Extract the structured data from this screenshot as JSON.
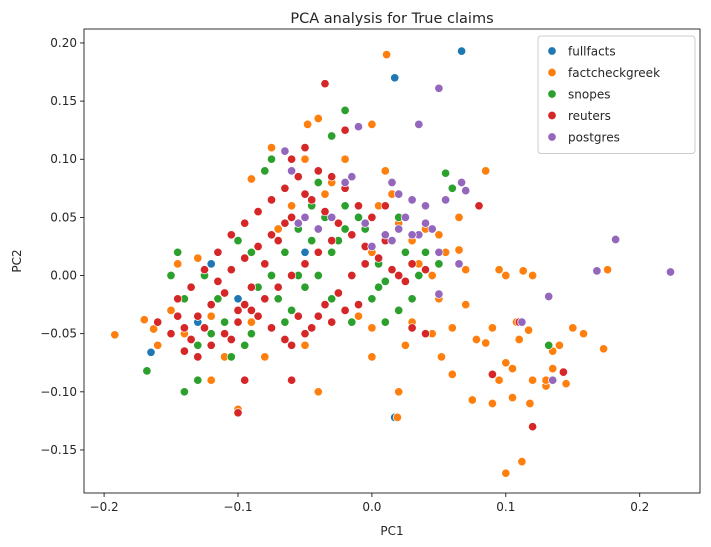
{
  "chart_data": {
    "type": "scatter",
    "title": "PCA analysis for True claims",
    "xlabel": "PC1",
    "ylabel": "PC2",
    "xlim": [
      -0.215,
      0.245
    ],
    "ylim": [
      -0.187,
      0.212
    ],
    "x_ticks": [
      -0.2,
      -0.1,
      0.0,
      0.1,
      0.2
    ],
    "x_tick_labels": [
      "−0.2",
      "−0.1",
      "0.0",
      "0.1",
      "0.2"
    ],
    "y_ticks": [
      -0.15,
      -0.1,
      -0.05,
      0.0,
      0.05,
      0.1,
      0.15,
      0.2
    ],
    "y_tick_labels": [
      "−0.15",
      "−0.10",
      "−0.05",
      "0.00",
      "0.05",
      "0.10",
      "0.15",
      "0.20"
    ],
    "grid": false,
    "legend_position": "top-right",
    "series": [
      {
        "name": "fullfacts",
        "color": "#1f77b4",
        "points": [
          [
            0.067,
            0.193
          ],
          [
            0.017,
            0.17
          ],
          [
            -0.165,
            -0.066
          ],
          [
            -0.12,
            0.01
          ],
          [
            -0.1,
            -0.02
          ],
          [
            -0.05,
            0.02
          ],
          [
            0.017,
            -0.122
          ],
          [
            -0.13,
            -0.04
          ]
        ]
      },
      {
        "name": "factcheckgreek",
        "color": "#ff7f0e",
        "points": [
          [
            0.011,
            0.19
          ],
          [
            -0.048,
            0.13
          ],
          [
            -0.04,
            0.135
          ],
          [
            0.0,
            0.13
          ],
          [
            -0.075,
            0.11
          ],
          [
            -0.05,
            0.1
          ],
          [
            -0.09,
            0.083
          ],
          [
            0.085,
            0.09
          ],
          [
            -0.192,
            -0.051
          ],
          [
            -0.17,
            -0.038
          ],
          [
            -0.163,
            -0.046
          ],
          [
            -0.16,
            -0.06
          ],
          [
            -0.12,
            -0.09
          ],
          [
            -0.1,
            -0.115
          ],
          [
            -0.06,
            -0.09
          ],
          [
            -0.04,
            -0.1
          ],
          [
            0.0,
            -0.07
          ],
          [
            0.02,
            -0.1
          ],
          [
            0.019,
            -0.122
          ],
          [
            0.06,
            -0.085
          ],
          [
            0.1,
            -0.17
          ],
          [
            0.112,
            -0.16
          ],
          [
            0.09,
            -0.11
          ],
          [
            0.1,
            -0.075
          ],
          [
            0.11,
            -0.055
          ],
          [
            0.12,
            -0.09
          ],
          [
            0.13,
            -0.095
          ],
          [
            0.135,
            -0.08
          ],
          [
            0.15,
            -0.045
          ],
          [
            0.158,
            -0.05
          ],
          [
            0.173,
            -0.063
          ],
          [
            0.176,
            0.005
          ],
          [
            0.113,
            0.004
          ],
          [
            0.095,
            0.005
          ],
          [
            0.07,
            0.005
          ],
          [
            0.055,
            0.02
          ],
          [
            0.065,
            0.05
          ],
          [
            0.05,
            0.035
          ],
          [
            0.03,
            0.03
          ],
          [
            0.045,
            -0.05
          ],
          [
            0.052,
            -0.07
          ],
          [
            0.06,
            -0.045
          ],
          [
            0.078,
            -0.055
          ],
          [
            0.085,
            -0.058
          ],
          [
            0.105,
            -0.08
          ],
          [
            0.13,
            -0.09
          ],
          [
            0.095,
            -0.09
          ],
          [
            0.118,
            -0.11
          ],
          [
            0.145,
            -0.093
          ],
          [
            0.14,
            -0.06
          ],
          [
            0.105,
            -0.105
          ],
          [
            0.075,
            -0.107
          ],
          [
            0.09,
            -0.045
          ],
          [
            0.117,
            -0.047
          ],
          [
            0.108,
            -0.04
          ],
          [
            0.12,
            0.0
          ],
          [
            0.135,
            -0.065
          ],
          [
            -0.02,
            0.1
          ],
          [
            -0.03,
            0.08
          ],
          [
            0.01,
            0.09
          ],
          [
            0.04,
            0.06
          ],
          [
            0.02,
            0.045
          ],
          [
            0.03,
            -0.04
          ],
          [
            0.025,
            -0.06
          ],
          [
            0.0,
            -0.045
          ],
          [
            -0.01,
            -0.035
          ],
          [
            -0.05,
            -0.06
          ],
          [
            -0.08,
            -0.07
          ],
          [
            -0.11,
            -0.07
          ],
          [
            -0.14,
            -0.05
          ],
          [
            -0.15,
            -0.03
          ],
          [
            -0.145,
            0.01
          ],
          [
            -0.13,
            0.015
          ],
          [
            -0.07,
            0.04
          ],
          [
            -0.06,
            0.06
          ],
          [
            -0.035,
            0.07
          ],
          [
            0.005,
            0.06
          ],
          [
            0.015,
            0.07
          ],
          [
            -0.09,
            -0.04
          ],
          [
            -0.12,
            -0.035
          ],
          [
            0.045,
            0.0
          ],
          [
            0.035,
            0.01
          ],
          [
            0.05,
            -0.02
          ],
          [
            0.04,
            0.04
          ],
          [
            0.065,
            0.022
          ],
          [
            0.1,
            0.0
          ],
          [
            0.07,
            -0.025
          ],
          [
            0.0,
            0.02
          ]
        ]
      },
      {
        "name": "snopes",
        "color": "#2ca02c",
        "points": [
          [
            -0.02,
            0.142
          ],
          [
            -0.03,
            0.12
          ],
          [
            -0.075,
            0.1
          ],
          [
            -0.08,
            0.09
          ],
          [
            -0.04,
            0.08
          ],
          [
            0.055,
            0.088
          ],
          [
            0.06,
            0.075
          ],
          [
            -0.168,
            -0.082
          ],
          [
            -0.14,
            -0.1
          ],
          [
            -0.13,
            -0.09
          ],
          [
            -0.145,
            0.02
          ],
          [
            -0.1,
            0.03
          ],
          [
            0.01,
            -0.04
          ],
          [
            0.025,
            0.02
          ],
          [
            0.03,
            -0.02
          ],
          [
            0.0,
            -0.02
          ],
          [
            -0.01,
            0.05
          ],
          [
            -0.02,
            0.04
          ],
          [
            -0.03,
            0.02
          ],
          [
            -0.04,
            0.0
          ],
          [
            -0.05,
            -0.01
          ],
          [
            -0.06,
            -0.03
          ],
          [
            -0.07,
            -0.02
          ],
          [
            -0.08,
            0.01
          ],
          [
            -0.09,
            0.02
          ],
          [
            -0.1,
            -0.03
          ],
          [
            -0.11,
            -0.04
          ],
          [
            -0.12,
            -0.05
          ],
          [
            -0.13,
            -0.06
          ],
          [
            0.05,
            0.01
          ],
          [
            0.04,
            0.02
          ],
          [
            0.02,
            -0.03
          ],
          [
            0.005,
            -0.01
          ],
          [
            -0.015,
            -0.04
          ],
          [
            -0.025,
            0.03
          ],
          [
            -0.035,
            0.05
          ],
          [
            -0.045,
            0.06
          ],
          [
            -0.055,
            0.04
          ],
          [
            -0.065,
            0.02
          ],
          [
            -0.075,
            0.0
          ],
          [
            -0.085,
            -0.01
          ],
          [
            -0.095,
            -0.06
          ],
          [
            -0.105,
            -0.07
          ],
          [
            -0.115,
            -0.02
          ],
          [
            -0.125,
            0.0
          ],
          [
            0.015,
            0.03
          ],
          [
            0.035,
            0.0
          ],
          [
            0.132,
            -0.06
          ],
          [
            0.02,
            0.05
          ],
          [
            -0.005,
            0.04
          ],
          [
            -0.02,
            0.06
          ],
          [
            -0.045,
            0.03
          ],
          [
            -0.055,
            0.0
          ],
          [
            -0.065,
            -0.04
          ],
          [
            -0.09,
            -0.05
          ],
          [
            -0.14,
            -0.02
          ],
          [
            -0.15,
            0.0
          ],
          [
            0.005,
            0.01
          ],
          [
            0.01,
            -0.005
          ],
          [
            -0.03,
            -0.02
          ]
        ]
      },
      {
        "name": "reuters",
        "color": "#d62728",
        "points": [
          [
            -0.035,
            0.165
          ],
          [
            -0.02,
            0.125
          ],
          [
            -0.05,
            0.11
          ],
          [
            -0.06,
            0.1
          ],
          [
            0.08,
            0.06
          ],
          [
            -0.1,
            -0.118
          ],
          [
            -0.095,
            -0.09
          ],
          [
            -0.06,
            -0.09
          ],
          [
            0.09,
            -0.085
          ],
          [
            0.12,
            -0.13
          ],
          [
            0.143,
            -0.083
          ],
          [
            0.11,
            -0.04
          ],
          [
            0.04,
            -0.05
          ],
          [
            0.03,
            -0.045
          ],
          [
            0.02,
            0.0
          ],
          [
            0.01,
            0.03
          ],
          [
            -0.01,
            0.06
          ],
          [
            -0.02,
            0.075
          ],
          [
            -0.03,
            0.085
          ],
          [
            -0.04,
            0.09
          ],
          [
            -0.05,
            0.07
          ],
          [
            -0.06,
            0.05
          ],
          [
            -0.07,
            0.03
          ],
          [
            -0.08,
            0.01
          ],
          [
            -0.09,
            -0.01
          ],
          [
            -0.1,
            -0.03
          ],
          [
            -0.11,
            -0.05
          ],
          [
            -0.12,
            -0.06
          ],
          [
            -0.13,
            -0.07
          ],
          [
            -0.14,
            -0.065
          ],
          [
            -0.15,
            -0.05
          ],
          [
            -0.16,
            -0.04
          ],
          [
            -0.145,
            -0.02
          ],
          [
            -0.135,
            -0.01
          ],
          [
            -0.125,
            0.005
          ],
          [
            -0.115,
            0.02
          ],
          [
            -0.105,
            0.035
          ],
          [
            -0.095,
            0.045
          ],
          [
            -0.085,
            0.055
          ],
          [
            -0.075,
            0.065
          ],
          [
            -0.065,
            0.075
          ],
          [
            -0.055,
            0.085
          ],
          [
            -0.045,
            0.065
          ],
          [
            -0.035,
            0.055
          ],
          [
            -0.025,
            0.045
          ],
          [
            -0.015,
            0.035
          ],
          [
            -0.005,
            0.025
          ],
          [
            0.005,
            0.015
          ],
          [
            0.015,
            0.005
          ],
          [
            0.025,
            -0.005
          ],
          [
            -0.03,
            0.03
          ],
          [
            -0.04,
            0.02
          ],
          [
            -0.05,
            0.01
          ],
          [
            -0.06,
            0.0
          ],
          [
            -0.07,
            -0.01
          ],
          [
            -0.08,
            -0.02
          ],
          [
            -0.09,
            -0.03
          ],
          [
            -0.1,
            -0.04
          ],
          [
            -0.11,
            -0.015
          ],
          [
            -0.12,
            -0.025
          ],
          [
            -0.13,
            -0.035
          ],
          [
            -0.14,
            -0.045
          ],
          [
            -0.055,
            -0.035
          ],
          [
            -0.045,
            -0.045
          ],
          [
            -0.035,
            -0.025
          ],
          [
            -0.025,
            -0.015
          ],
          [
            -0.015,
            0.0
          ],
          [
            -0.005,
            0.01
          ],
          [
            0.0,
            0.05
          ],
          [
            0.01,
            0.06
          ],
          [
            -0.065,
            0.045
          ],
          [
            -0.075,
            0.035
          ],
          [
            -0.085,
            0.025
          ],
          [
            -0.095,
            0.015
          ],
          [
            -0.105,
            0.005
          ],
          [
            -0.115,
            -0.005
          ],
          [
            -0.065,
            -0.055
          ],
          [
            -0.075,
            -0.045
          ],
          [
            -0.085,
            -0.035
          ],
          [
            -0.095,
            -0.025
          ],
          [
            -0.105,
            -0.055
          ],
          [
            -0.125,
            -0.045
          ],
          [
            -0.135,
            -0.055
          ],
          [
            -0.145,
            -0.035
          ],
          [
            0.03,
            0.01
          ],
          [
            0.04,
            0.005
          ],
          [
            -0.01,
            -0.025
          ],
          [
            -0.02,
            -0.03
          ],
          [
            -0.03,
            -0.04
          ],
          [
            -0.04,
            -0.035
          ],
          [
            -0.05,
            -0.05
          ],
          [
            -0.06,
            -0.06
          ]
        ]
      },
      {
        "name": "postgres",
        "color": "#9467bd",
        "points": [
          [
            0.05,
            0.161
          ],
          [
            0.035,
            0.13
          ],
          [
            -0.01,
            0.128
          ],
          [
            0.07,
            0.073
          ],
          [
            0.067,
            0.08
          ],
          [
            0.055,
            0.065
          ],
          [
            0.04,
            0.06
          ],
          [
            0.03,
            0.065
          ],
          [
            0.02,
            0.07
          ],
          [
            0.015,
            0.08
          ],
          [
            0.025,
            0.05
          ],
          [
            0.035,
            0.035
          ],
          [
            0.04,
            0.045
          ],
          [
            0.045,
            0.04
          ],
          [
            0.05,
            0.02
          ],
          [
            0.05,
            -0.016
          ],
          [
            0.065,
            0.01
          ],
          [
            0.168,
            0.004
          ],
          [
            0.182,
            0.031
          ],
          [
            0.223,
            0.003
          ],
          [
            0.132,
            -0.018
          ],
          [
            0.112,
            -0.04
          ],
          [
            0.135,
            -0.09
          ],
          [
            -0.065,
            0.107
          ],
          [
            -0.06,
            0.09
          ],
          [
            -0.05,
            0.05
          ],
          [
            -0.04,
            0.04
          ],
          [
            -0.03,
            0.05
          ],
          [
            -0.02,
            0.08
          ],
          [
            -0.015,
            0.085
          ],
          [
            0.01,
            0.035
          ],
          [
            0.015,
            0.03
          ],
          [
            0.02,
            0.04
          ],
          [
            0.03,
            0.035
          ],
          [
            0.0,
            0.025
          ],
          [
            -0.005,
            0.045
          ],
          [
            -0.055,
            0.045
          ]
        ]
      }
    ]
  }
}
